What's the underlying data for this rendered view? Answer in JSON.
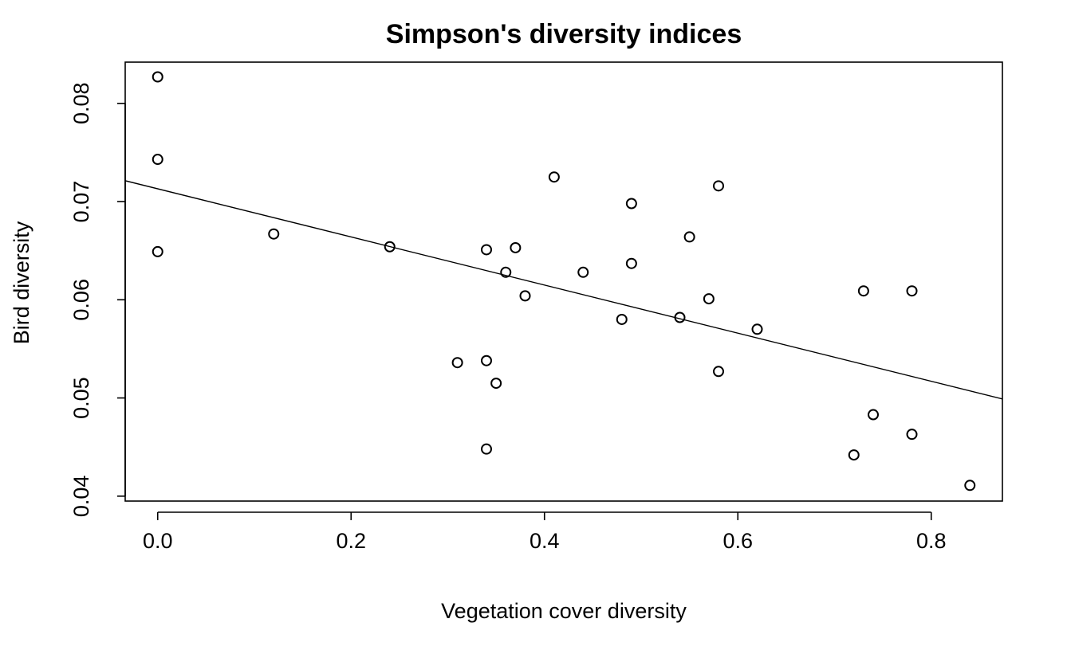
{
  "chart_data": {
    "type": "scatter",
    "title": "Simpson's diversity indices",
    "xlabel": "Vegetation cover diversity",
    "ylabel": "Bird diversity",
    "xlim": [
      -0.0336,
      0.8736
    ],
    "ylim": [
      0.0395,
      0.0842
    ],
    "x_ticks": [
      0.0,
      0.2,
      0.4,
      0.6,
      0.8
    ],
    "x_tick_labels": [
      "0.0",
      "0.2",
      "0.4",
      "0.6",
      "0.8"
    ],
    "y_ticks": [
      0.04,
      0.05,
      0.06,
      0.07,
      0.08
    ],
    "y_tick_labels": [
      "0.04",
      "0.05",
      "0.06",
      "0.07",
      "0.08"
    ],
    "grid": false,
    "points": [
      {
        "x": 0.0,
        "y": 0.0827
      },
      {
        "x": 0.0,
        "y": 0.0743
      },
      {
        "x": 0.0,
        "y": 0.0649
      },
      {
        "x": 0.12,
        "y": 0.0667
      },
      {
        "x": 0.24,
        "y": 0.0654
      },
      {
        "x": 0.31,
        "y": 0.0536
      },
      {
        "x": 0.34,
        "y": 0.0651
      },
      {
        "x": 0.34,
        "y": 0.0538
      },
      {
        "x": 0.34,
        "y": 0.0448
      },
      {
        "x": 0.35,
        "y": 0.0515
      },
      {
        "x": 0.36,
        "y": 0.0628
      },
      {
        "x": 0.37,
        "y": 0.0653
      },
      {
        "x": 0.38,
        "y": 0.0604
      },
      {
        "x": 0.41,
        "y": 0.0725
      },
      {
        "x": 0.44,
        "y": 0.0628
      },
      {
        "x": 0.48,
        "y": 0.058
      },
      {
        "x": 0.49,
        "y": 0.0698
      },
      {
        "x": 0.49,
        "y": 0.0637
      },
      {
        "x": 0.54,
        "y": 0.0582
      },
      {
        "x": 0.55,
        "y": 0.0664
      },
      {
        "x": 0.57,
        "y": 0.0601
      },
      {
        "x": 0.58,
        "y": 0.0716
      },
      {
        "x": 0.58,
        "y": 0.0527
      },
      {
        "x": 0.62,
        "y": 0.057
      },
      {
        "x": 0.72,
        "y": 0.0442
      },
      {
        "x": 0.73,
        "y": 0.0609
      },
      {
        "x": 0.74,
        "y": 0.0483
      },
      {
        "x": 0.78,
        "y": 0.0609
      },
      {
        "x": 0.78,
        "y": 0.0463
      },
      {
        "x": 0.84,
        "y": 0.0411
      }
    ],
    "regression_line": {
      "intercept": 0.0713,
      "slope": -0.0245
    }
  }
}
